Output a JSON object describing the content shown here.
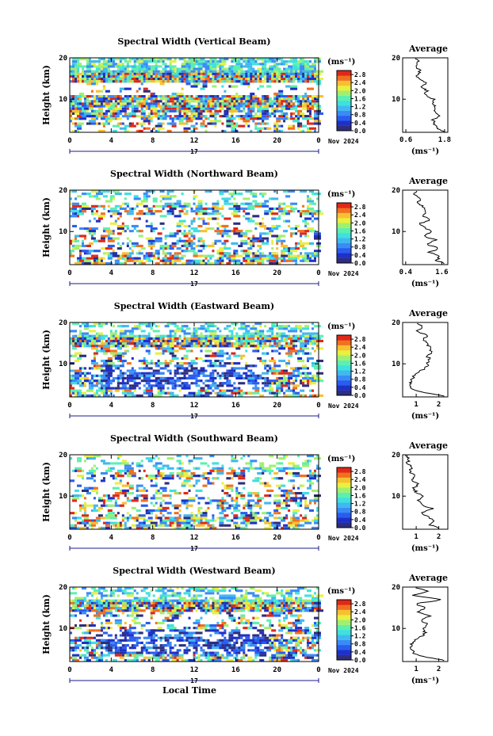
{
  "chart_data": [
    {
      "type": "heatmap",
      "title": "Spectral Width (Vertical Beam)",
      "ylabel": "Height (km)",
      "xlim": [
        0,
        24
      ],
      "ylim": [
        2,
        20
      ],
      "xticks": [
        "0",
        "4",
        "8",
        "12",
        "16",
        "20",
        "0"
      ],
      "yticks": [
        "20",
        "10"
      ],
      "date_center": "17",
      "date_label": "Nov 2024",
      "colorbar": {
        "unit": "(ms⁻¹)",
        "ticks": [
          "2.8",
          "2.4",
          "2.0",
          "1.6",
          "1.2",
          "0.8",
          "0.4",
          "0.0"
        ],
        "range": [
          0,
          3.0
        ]
      },
      "profile": {
        "title": "Average",
        "xlabel": "(ms⁻¹)",
        "xticks": [
          "0.6",
          "1.8"
        ],
        "xlim": [
          0.5,
          1.9
        ],
        "heights": [
          2.2,
          3,
          4,
          5,
          6,
          7,
          8,
          9,
          10,
          11,
          12,
          13,
          14,
          15,
          16,
          17,
          18,
          19,
          19.8
        ],
        "values": [
          1.8,
          1.55,
          1.5,
          1.45,
          1.6,
          1.5,
          1.55,
          1.4,
          1.5,
          1.2,
          1.25,
          1.1,
          1.2,
          1.0,
          0.95,
          1.05,
          0.9,
          1.0,
          0.85
        ]
      },
      "density": [
        0.6,
        0.95,
        0.1,
        0.85,
        0.55,
        0.25
      ],
      "contrast": 0.6
    },
    {
      "type": "heatmap",
      "title": "Spectral Width (Northward Beam)",
      "ylabel": "Height (km)",
      "xlim": [
        0,
        24
      ],
      "ylim": [
        2,
        20
      ],
      "xticks": [
        "0",
        "4",
        "8",
        "12",
        "16",
        "20",
        "0"
      ],
      "yticks": [
        "20",
        "10"
      ],
      "date_center": "17",
      "date_label": "Nov 2024",
      "colorbar": {
        "unit": "(ms⁻¹)",
        "ticks": [
          "2.8",
          "2.4",
          "2.0",
          "1.6",
          "1.2",
          "0.8",
          "0.4",
          "0.0"
        ],
        "range": [
          0,
          3.0
        ]
      },
      "profile": {
        "title": "Average",
        "xlabel": "(ms⁻¹)",
        "xticks": [
          "0.4",
          "1.6"
        ],
        "xlim": [
          0.3,
          1.8
        ],
        "heights": [
          2.2,
          3,
          4,
          5,
          6,
          7,
          8,
          9,
          10,
          11,
          12,
          13,
          14,
          15,
          16,
          17,
          18,
          19,
          19.8
        ],
        "values": [
          1.7,
          1.4,
          1.55,
          1.2,
          1.5,
          1.1,
          1.4,
          1.0,
          1.3,
          1.0,
          0.9,
          1.2,
          0.95,
          1.1,
          1.0,
          0.8,
          0.9,
          0.7,
          0.75
        ]
      },
      "density": [
        0.2,
        0.35,
        0.15,
        0.25,
        0.3,
        0.4
      ],
      "contrast": 0.5
    },
    {
      "type": "heatmap",
      "title": "Spectral Width (Eastward Beam)",
      "ylabel": "Height (km)",
      "xlim": [
        0,
        24
      ],
      "ylim": [
        2,
        20
      ],
      "xticks": [
        "0",
        "4",
        "8",
        "12",
        "16",
        "20",
        "0"
      ],
      "yticks": [
        "20",
        "10"
      ],
      "date_center": "17",
      "date_label": "Nov 2024",
      "colorbar": {
        "unit": "(ms⁻¹)",
        "ticks": [
          "2.8",
          "2.4",
          "2.0",
          "1.6",
          "1.2",
          "0.8",
          "0.4",
          "0.0"
        ],
        "range": [
          0,
          3.0
        ]
      },
      "profile": {
        "title": "Average",
        "xlabel": "(ms⁻¹)",
        "xticks": [
          "1",
          "2"
        ],
        "xlim": [
          0.4,
          2.4
        ],
        "heights": [
          2.2,
          3,
          4,
          5,
          6,
          7,
          8,
          9,
          10,
          11,
          12,
          13,
          14,
          15,
          16,
          17,
          18,
          19,
          19.8
        ],
        "values": [
          2.2,
          1.4,
          0.8,
          0.75,
          0.8,
          0.9,
          1.1,
          1.4,
          1.5,
          1.6,
          1.5,
          1.7,
          1.6,
          1.5,
          1.3,
          1.5,
          1.0,
          1.3,
          1.1
        ]
      },
      "density": [
        0.3,
        0.8,
        0.2,
        0.3,
        0.45,
        0.35
      ],
      "contrast": 0.2
    },
    {
      "type": "heatmap",
      "title": "Spectral Width (Southward Beam)",
      "ylabel": "Height (km)",
      "xlim": [
        0,
        24
      ],
      "ylim": [
        2,
        20
      ],
      "xticks": [
        "0",
        "4",
        "8",
        "12",
        "16",
        "20",
        "0"
      ],
      "yticks": [
        "20",
        "10"
      ],
      "date_center": "17",
      "date_label": "Nov 2024",
      "colorbar": {
        "unit": "(ms⁻¹)",
        "ticks": [
          "2.8",
          "2.4",
          "2.0",
          "1.6",
          "1.2",
          "0.8",
          "0.4",
          "0.0"
        ],
        "range": [
          0,
          3.0
        ]
      },
      "profile": {
        "title": "Average",
        "xlabel": "(ms⁻¹)",
        "xticks": [
          "1",
          "2"
        ],
        "xlim": [
          0.4,
          2.4
        ],
        "heights": [
          2.2,
          3,
          4,
          5,
          6,
          7,
          8,
          9,
          10,
          11,
          12,
          13,
          14,
          15,
          16,
          17,
          18,
          19,
          19.8
        ],
        "values": [
          2.0,
          1.6,
          1.8,
          1.5,
          1.3,
          1.7,
          1.2,
          1.1,
          1.3,
          1.0,
          0.9,
          1.1,
          0.8,
          1.0,
          0.7,
          0.8,
          0.6,
          0.7,
          0.55
        ]
      },
      "density": [
        0.2,
        0.3,
        0.15,
        0.3,
        0.25,
        0.35
      ],
      "contrast": 0.5
    },
    {
      "type": "heatmap",
      "title": "Spectral Width (Westward Beam)",
      "ylabel": "Height (km)",
      "xlabel": "Local Time",
      "xlim": [
        0,
        24
      ],
      "ylim": [
        2,
        20
      ],
      "xticks": [
        "0",
        "4",
        "8",
        "12",
        "16",
        "20",
        "0"
      ],
      "yticks": [
        "20",
        "10"
      ],
      "date_center": "17",
      "date_label": "Nov 2024",
      "colorbar": {
        "unit": "(ms⁻¹)",
        "ticks": [
          "2.8",
          "2.4",
          "2.0",
          "1.6",
          "1.2",
          "0.8",
          "0.4",
          "0.0"
        ],
        "range": [
          0,
          3.0
        ]
      },
      "profile": {
        "title": "Average",
        "xlabel": "(ms⁻¹)",
        "xticks": [
          "1",
          "2"
        ],
        "xlim": [
          0.4,
          2.4
        ],
        "heights": [
          2.2,
          3,
          4,
          5,
          6,
          7,
          8,
          9,
          10,
          11,
          12,
          13,
          14,
          15,
          16,
          17,
          18,
          19,
          19.8
        ],
        "values": [
          2.3,
          1.5,
          0.9,
          0.8,
          0.75,
          0.9,
          1.2,
          1.4,
          1.3,
          1.5,
          1.2,
          1.6,
          1.1,
          1.4,
          1.0,
          2.1,
          0.9,
          1.5,
          1.0
        ]
      },
      "density": [
        0.3,
        0.85,
        0.2,
        0.3,
        0.45,
        0.4
      ],
      "contrast": 0.2
    }
  ]
}
